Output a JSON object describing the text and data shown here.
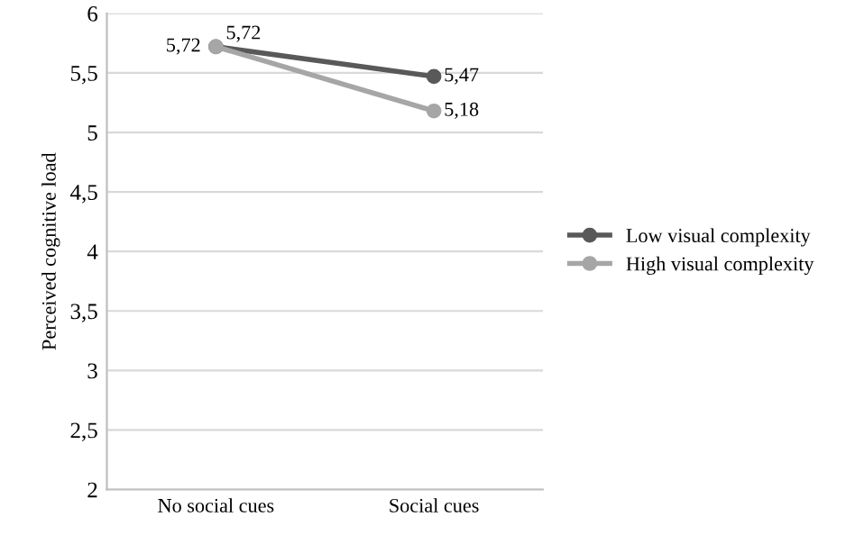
{
  "chart_data": {
    "type": "line",
    "ylabel": "Perceived cognitive load",
    "categories": [
      "No social cues",
      "Social cues"
    ],
    "series": [
      {
        "name": "Low visual complexity",
        "color": "#595959",
        "values": [
          5.72,
          5.47
        ],
        "value_labels": [
          "5,72",
          "5,47"
        ]
      },
      {
        "name": "High visual complexity",
        "color": "#a6a6a6",
        "values": [
          5.72,
          5.18
        ],
        "value_labels": [
          "5,72",
          "5,18"
        ]
      }
    ],
    "ylim": [
      2,
      6
    ],
    "yticks": [
      2,
      {
        "value": 2.5,
        "label": "2,5"
      },
      3,
      {
        "value": 3.5,
        "label": "3,5"
      },
      4,
      {
        "value": 4.5,
        "label": "4,5"
      },
      5,
      {
        "value": 5.5,
        "label": "5,5"
      },
      6
    ],
    "grid": "y",
    "legend": "right",
    "marker": "circle",
    "line_style": "solid"
  }
}
